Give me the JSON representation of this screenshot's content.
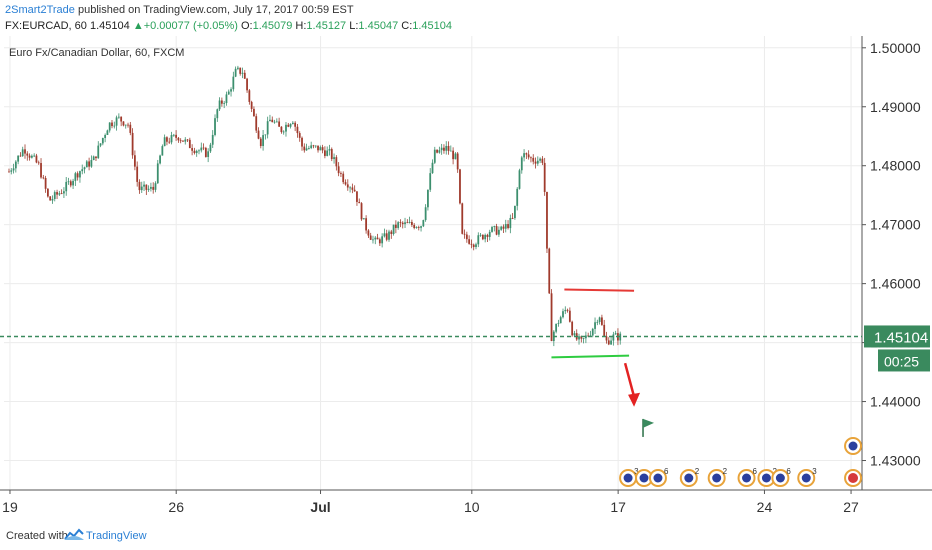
{
  "header": {
    "author": "2Smart2Trade",
    "published_text": "published on TradingView.com, July 17, 2017 00:59 EST",
    "symbol": "FX:EURCAD, 60",
    "last": "1.45104",
    "change_arrow": "▲",
    "change": "+0.00077 (+0.05%)",
    "open_label": "O:",
    "open": "1.45079",
    "high_label": "H:",
    "high": "1.45127",
    "low_label": "L:",
    "low": "1.45047",
    "close_label": "C:",
    "close": "1.45104"
  },
  "footer": {
    "created_with": "Created with",
    "brand": "TradingView",
    "logo_icon": "tradingview-logo-icon"
  },
  "colors": {
    "up_candle": "#3c8f6e",
    "down_candle": "#a03a2c",
    "price_line": "#3a8a5e",
    "resistance": "#e53935",
    "support": "#2ecc40",
    "arrow": "#e32222"
  },
  "chart_data": {
    "type": "candlestick",
    "title": "Euro Fx/Canadian Dollar, 60, FXCM",
    "ylim": [
      1.425,
      1.502
    ],
    "y_ticks": [
      "1.50000",
      "1.49000",
      "1.48000",
      "1.47000",
      "1.46000",
      "1.45000",
      "1.44000",
      "1.43000"
    ],
    "y_tick_values": [
      1.5,
      1.49,
      1.48,
      1.47,
      1.46,
      1.45,
      1.44,
      1.43
    ],
    "x_ticks": [
      "19",
      "26",
      "Jul",
      "10",
      "17",
      "24",
      "27"
    ],
    "x_tick_values": [
      6,
      173,
      318,
      470,
      617,
      764,
      851
    ],
    "x_range": [
      0,
      862
    ],
    "x_unit_note": "x positions in bars-space units of the visible axis",
    "current_price": 1.45104,
    "current_price_label": "1.45104",
    "countdown": "00:25",
    "price_path": [
      [
        5,
        1.479
      ],
      [
        20,
        1.483
      ],
      [
        35,
        1.48
      ],
      [
        45,
        1.474
      ],
      [
        60,
        1.476
      ],
      [
        75,
        1.479
      ],
      [
        90,
        1.481
      ],
      [
        105,
        1.487
      ],
      [
        115,
        1.488
      ],
      [
        125,
        1.487
      ],
      [
        135,
        1.476
      ],
      [
        150,
        1.476
      ],
      [
        160,
        1.484
      ],
      [
        175,
        1.485
      ],
      [
        190,
        1.483
      ],
      [
        205,
        1.482
      ],
      [
        215,
        1.49
      ],
      [
        225,
        1.492
      ],
      [
        233,
        1.496
      ],
      [
        240,
        1.496
      ],
      [
        248,
        1.49
      ],
      [
        258,
        1.484
      ],
      [
        268,
        1.488
      ],
      [
        278,
        1.486
      ],
      [
        290,
        1.488
      ],
      [
        300,
        1.483
      ],
      [
        315,
        1.483
      ],
      [
        328,
        1.482
      ],
      [
        340,
        1.478
      ],
      [
        352,
        1.476
      ],
      [
        362,
        1.47
      ],
      [
        372,
        1.467
      ],
      [
        385,
        1.468
      ],
      [
        395,
        1.47
      ],
      [
        410,
        1.47
      ],
      [
        420,
        1.47
      ],
      [
        432,
        1.482
      ],
      [
        445,
        1.483
      ],
      [
        455,
        1.481
      ],
      [
        460,
        1.468
      ],
      [
        472,
        1.467
      ],
      [
        488,
        1.469
      ],
      [
        500,
        1.469
      ],
      [
        512,
        1.471
      ],
      [
        520,
        1.482
      ],
      [
        532,
        1.481
      ],
      [
        542,
        1.481
      ],
      [
        546,
        1.463
      ],
      [
        550,
        1.451
      ],
      [
        558,
        1.454
      ],
      [
        566,
        1.456
      ],
      [
        572,
        1.451
      ],
      [
        580,
        1.45
      ],
      [
        590,
        1.452
      ],
      [
        598,
        1.455
      ],
      [
        604,
        1.45
      ],
      [
        612,
        1.451
      ],
      [
        620,
        1.451
      ]
    ],
    "resistance_line": {
      "x1": 563,
      "y1": 1.459,
      "x2": 633,
      "y2": 1.4588
    },
    "support_line": {
      "x1": 550,
      "y1": 1.4475,
      "x2": 628,
      "y2": 1.4478
    },
    "arrow_from": [
      624,
      1.4465
    ],
    "arrow_to": [
      633,
      1.4398
    ],
    "flag_at": [
      642,
      1.434
    ],
    "events": [
      {
        "x": 627,
        "count": "3"
      },
      {
        "x": 643,
        "count": ""
      },
      {
        "x": 657,
        "count": "6"
      },
      {
        "x": 688,
        "count": "2"
      },
      {
        "x": 716,
        "count": "2"
      },
      {
        "x": 746,
        "count": "6"
      },
      {
        "x": 766,
        "count": "2"
      },
      {
        "x": 780,
        "count": "6"
      },
      {
        "x": 806,
        "count": "3"
      },
      {
        "x": 853,
        "count": ""
      }
    ]
  }
}
